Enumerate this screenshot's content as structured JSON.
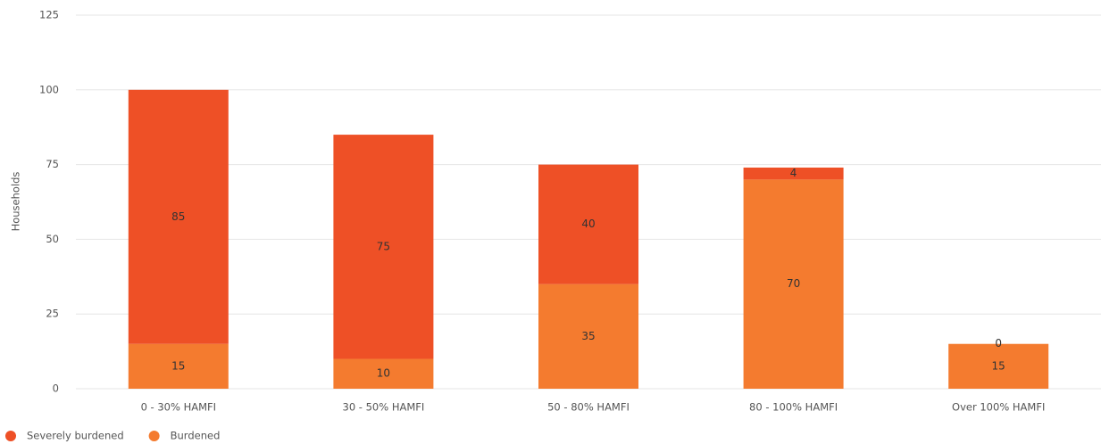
{
  "chart_data": {
    "type": "stacked_bar",
    "y_label": "Households",
    "categories": [
      "0 - 30% HAMFI",
      "30 - 50% HAMFI",
      "50 - 80% HAMFI",
      "80 - 100% HAMFI",
      "Over 100% HAMFI"
    ],
    "series": [
      {
        "name": "Severely burdened",
        "color": "#ee5026",
        "values": [
          85,
          75,
          40,
          4,
          0
        ]
      },
      {
        "name": "Burdened",
        "color": "#f47b2f",
        "values": [
          15,
          10,
          35,
          70,
          15
        ]
      }
    ],
    "ylim": [
      0,
      125
    ],
    "yticks": [
      0,
      25,
      50,
      75,
      100,
      125
    ],
    "grid": true,
    "legend": "bottom-left"
  }
}
